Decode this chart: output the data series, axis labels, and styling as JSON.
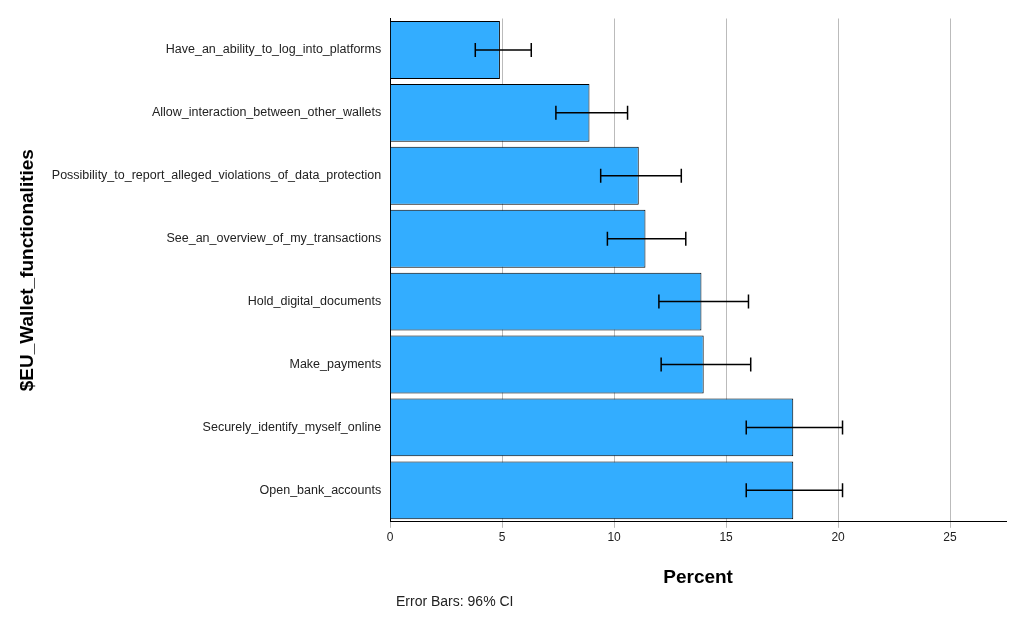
{
  "chart_data": {
    "type": "bar",
    "orientation": "horizontal",
    "xlabel": "Percent",
    "ylabel": "$EU_Wallet_functionalities",
    "categories": [
      "Have_an_ability_to_log_into_platforms",
      "Allow_interaction_between_other_wallets",
      "Possibility_to_report_alleged_violations_of_data_protection",
      "See_an_overview_of_my_transactions",
      "Hold_digital_documents",
      "Make_payments",
      "Securely_identify_myself_online",
      "Open_bank_accounts"
    ],
    "values": [
      4.9,
      8.9,
      11.1,
      11.4,
      13.9,
      14.0,
      18.0,
      18.0
    ],
    "errors": [
      [
        3.8,
        6.3
      ],
      [
        7.4,
        10.6
      ],
      [
        9.4,
        13.0
      ],
      [
        9.7,
        13.2
      ],
      [
        12.0,
        16.0
      ],
      [
        12.1,
        16.1
      ],
      [
        15.9,
        20.2
      ],
      [
        15.9,
        20.2
      ]
    ],
    "color": "#33adff",
    "xlim": [
      0,
      27.5
    ],
    "xticks": [
      0,
      5,
      10,
      15,
      20,
      25
    ],
    "grid": "x",
    "legend": false,
    "annotations": [
      "Error Bars: 96% CI"
    ]
  }
}
